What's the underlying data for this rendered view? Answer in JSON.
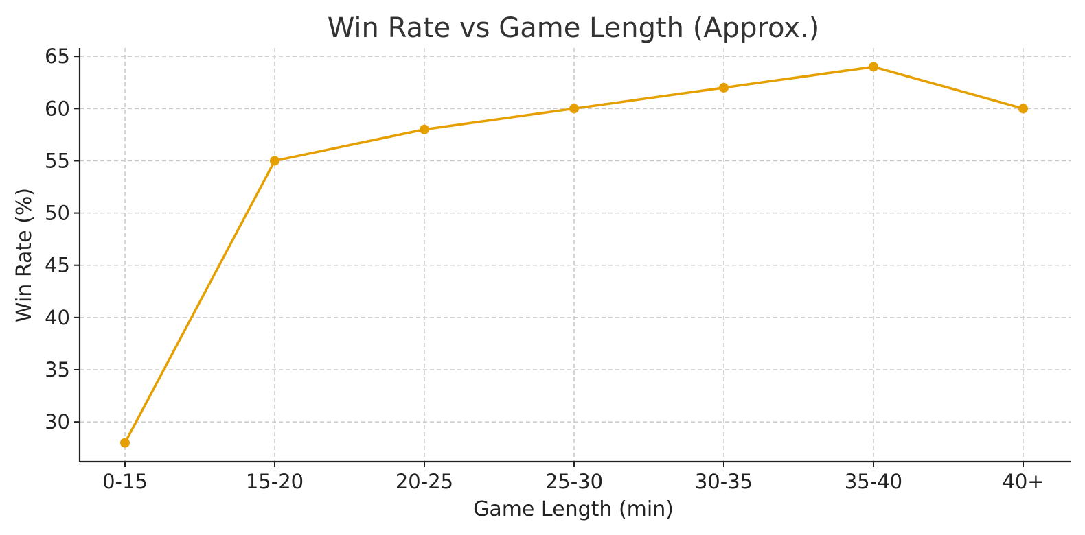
{
  "chart_data": {
    "type": "line",
    "title": "Win Rate vs Game Length (Approx.)",
    "xlabel": "Game Length (min)",
    "ylabel": "Win Rate (%)",
    "categories": [
      "0-15",
      "15-20",
      "20-25",
      "25-30",
      "30-35",
      "35-40",
      "40+"
    ],
    "series": [
      {
        "values": [
          28,
          55,
          58,
          60,
          62,
          64,
          60
        ],
        "color": "#E69F00",
        "marker": "circle"
      }
    ],
    "ylim": [
      26.2,
      65.8
    ],
    "yticks": [
      30,
      35,
      40,
      45,
      50,
      55,
      60,
      65
    ],
    "grid": true,
    "legend": "none"
  }
}
